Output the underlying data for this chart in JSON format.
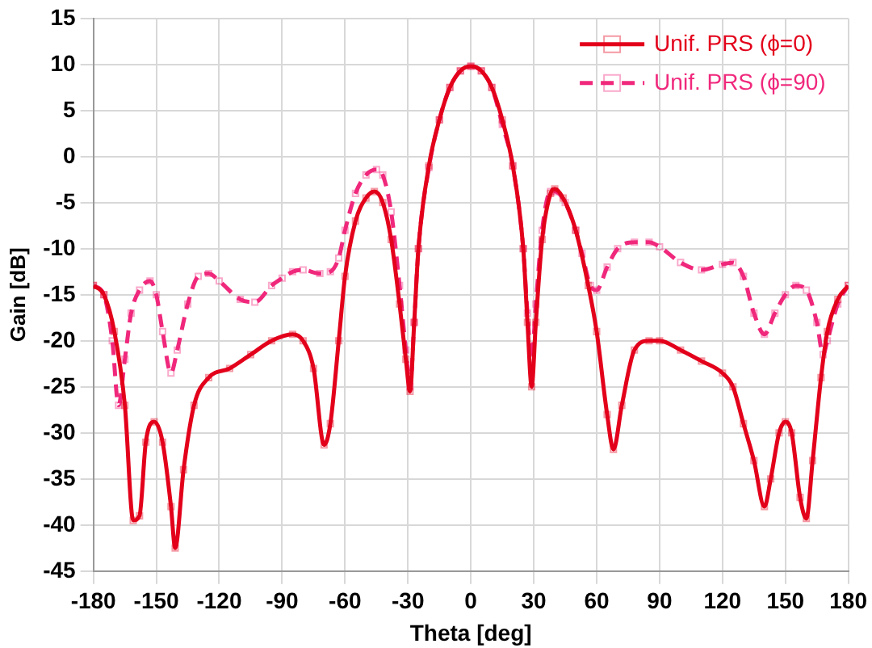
{
  "chart_data": {
    "type": "line",
    "xlabel": "Theta [deg]",
    "ylabel": "Gain [dB]",
    "xlim": [
      -180,
      180
    ],
    "xticks": [
      -180,
      -150,
      -120,
      -90,
      -60,
      -30,
      0,
      30,
      60,
      90,
      120,
      150,
      180
    ],
    "ylim": [
      -45,
      15
    ],
    "yticks": [
      -45,
      -40,
      -35,
      -30,
      -25,
      -20,
      -15,
      -10,
      -5,
      0,
      5,
      10,
      15
    ],
    "grid": true,
    "legend": "top right",
    "marker": "square",
    "series": [
      {
        "name": "Unif. PRS (ϕ=0)",
        "color": "#e3001b",
        "line_style": "solid",
        "x": [
          -180,
          -175,
          -170,
          -165,
          -161,
          -158,
          -155,
          -151,
          -147,
          -143,
          -141,
          -137,
          -132,
          -125,
          -115,
          -105,
          -95,
          -85,
          -80,
          -75,
          -70,
          -67,
          -63,
          -60,
          -55,
          -50,
          -46,
          -42,
          -38,
          -34,
          -31,
          -29,
          -27,
          -25,
          -20,
          -15,
          -10,
          -5,
          0,
          5,
          10,
          15,
          20,
          25,
          27,
          29,
          31,
          34,
          38,
          40,
          44,
          50,
          56,
          60,
          65,
          68,
          72,
          78,
          85,
          90,
          100,
          110,
          120,
          125,
          130,
          135,
          140,
          143,
          147,
          150,
          153,
          157,
          160,
          163,
          167,
          170,
          175,
          180
        ],
        "values": [
          -14,
          -15,
          -19,
          -27,
          -39.5,
          -39,
          -31,
          -28.8,
          -31,
          -38,
          -42.5,
          -34,
          -27,
          -24,
          -23,
          -21.5,
          -20,
          -19.3,
          -20,
          -23,
          -31.3,
          -29,
          -20,
          -13,
          -7,
          -4.5,
          -3.8,
          -5,
          -9,
          -16,
          -22,
          -25.5,
          -18,
          -10,
          -1,
          4,
          7.5,
          9.3,
          9.8,
          9.3,
          7.5,
          4,
          -1,
          -10,
          -18,
          -25,
          -18,
          -9,
          -4,
          -3.5,
          -4.5,
          -8,
          -14,
          -19,
          -28,
          -31.8,
          -27,
          -21,
          -20,
          -20,
          -21,
          -22.2,
          -23.5,
          -25,
          -29,
          -33,
          -38,
          -35,
          -30,
          -28.8,
          -30,
          -37,
          -39.3,
          -33,
          -24,
          -19,
          -15.5,
          -14
        ]
      },
      {
        "name": "Unif. PRS (ϕ=90)",
        "color": "#f0287c",
        "line_style": "dashed",
        "x": [
          -180,
          -175,
          -171,
          -168,
          -165,
          -162,
          -158,
          -153,
          -150,
          -147,
          -143,
          -140,
          -135,
          -130,
          -125,
          -120,
          -110,
          -103,
          -95,
          -90,
          -85,
          -80,
          -72,
          -67,
          -63,
          -60,
          -55,
          -50,
          -45,
          -42,
          -38,
          -34,
          -31,
          -29,
          -27,
          -25,
          -20,
          -15,
          -10,
          -5,
          0,
          5,
          10,
          15,
          20,
          25,
          27,
          29,
          31,
          34,
          38,
          40,
          45,
          50,
          53,
          57,
          60,
          65,
          70,
          78,
          85,
          90,
          100,
          110,
          120,
          125,
          130,
          135,
          140,
          145,
          150,
          155,
          160,
          165,
          168,
          170,
          175,
          180
        ],
        "values": [
          -14,
          -15,
          -20,
          -27,
          -22,
          -17,
          -14.5,
          -13.5,
          -15,
          -19,
          -23.5,
          -21,
          -16,
          -13,
          -12.7,
          -13.5,
          -15.5,
          -15.8,
          -14,
          -13.2,
          -12.5,
          -12.3,
          -12.7,
          -12.5,
          -11,
          -8,
          -4,
          -2,
          -1.4,
          -2,
          -6,
          -14,
          -21,
          -25,
          -18,
          -10,
          -1.2,
          4,
          7.5,
          9.3,
          9.8,
          9.3,
          7.5,
          3.5,
          -1,
          -10,
          -17,
          -22,
          -16,
          -8,
          -3.8,
          -3.8,
          -5,
          -8,
          -10.5,
          -14,
          -14.5,
          -12,
          -10,
          -9.3,
          -9.3,
          -9.8,
          -11.5,
          -12.3,
          -11.7,
          -11.5,
          -13,
          -17,
          -19.3,
          -17,
          -15,
          -14,
          -14.5,
          -18,
          -21.5,
          -20,
          -16,
          -14
        ]
      }
    ]
  }
}
